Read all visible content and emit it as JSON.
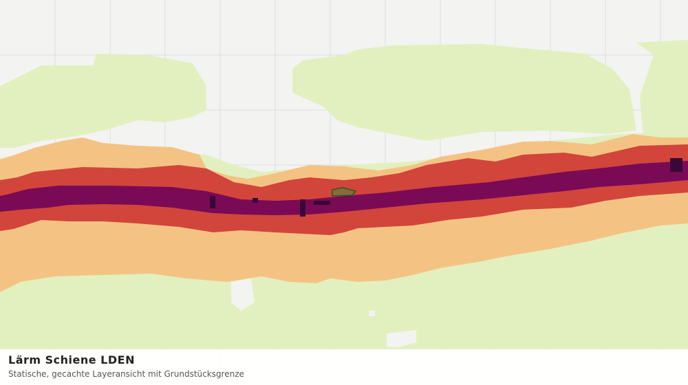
{
  "legend": {
    "title": "Lärm Schiene LDEN",
    "subtitle": "Statische, gecachte Layeransicht mit Grundstücksgrenze"
  }
}
